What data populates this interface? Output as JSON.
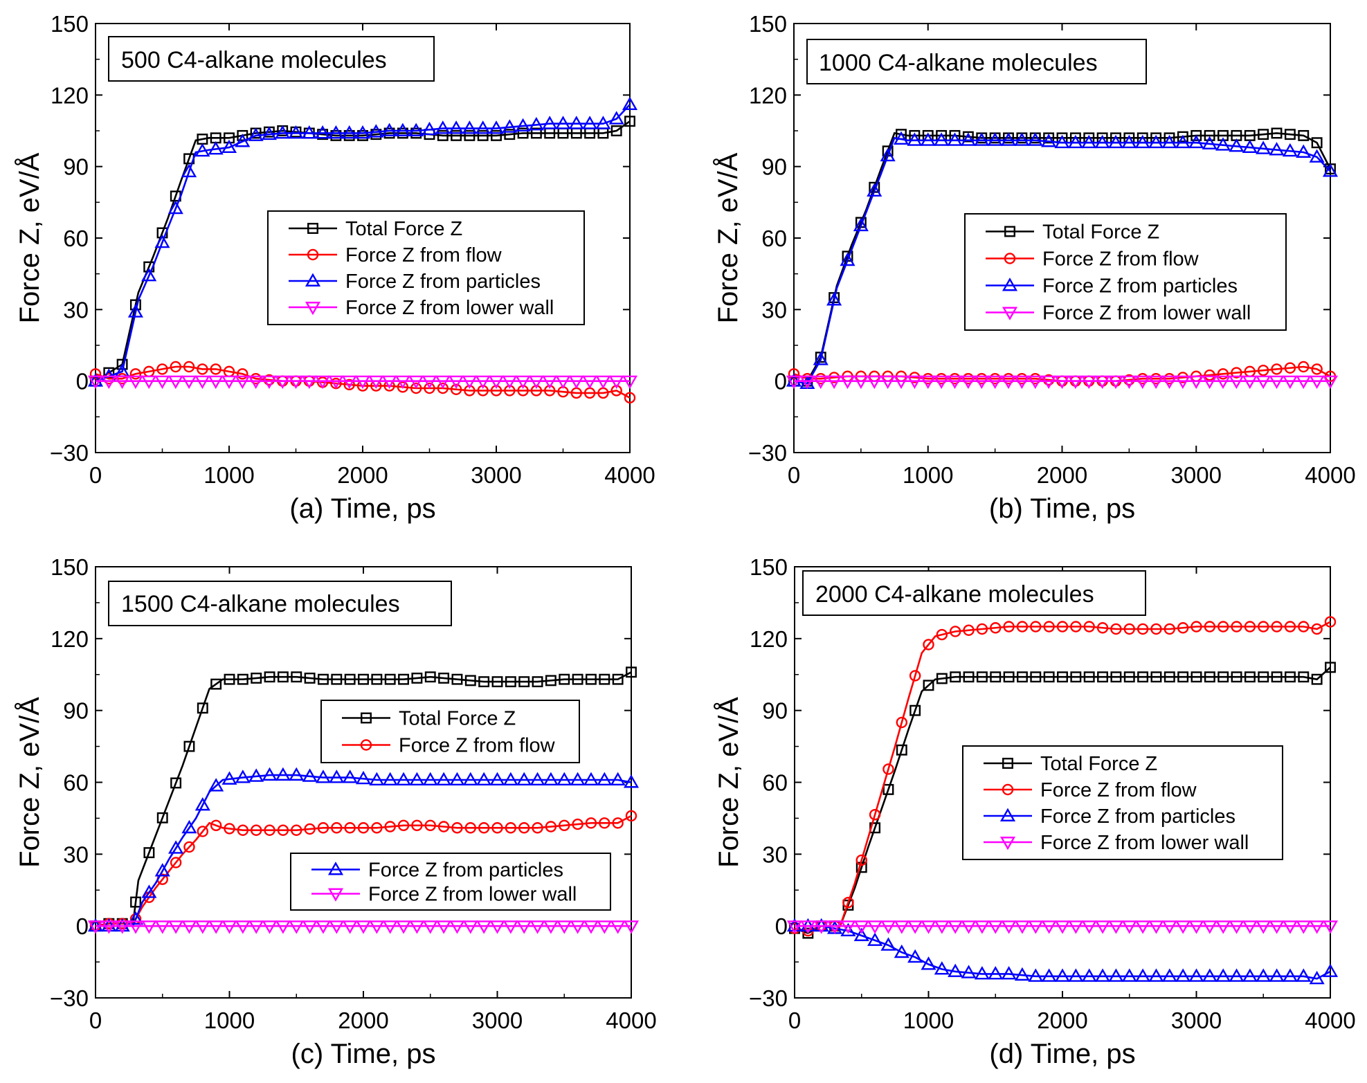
{
  "colors": {
    "total": "#000000",
    "flow": "#ff0000",
    "particles": "#0000ff",
    "lower_wall": "#ff00ff"
  },
  "chart_data": [
    {
      "type": "line",
      "panel_box": "500 C4-alkane molecules",
      "xlabel": "(a) Time, ps",
      "ylabel": "Force Z, eV/Å",
      "xlim": [
        0,
        4000
      ],
      "ylim": [
        -30,
        150
      ],
      "xticks": [
        "0",
        "1000",
        "2000",
        "3000",
        "4000"
      ],
      "yticks": [
        "−30",
        "0",
        "30",
        "60",
        "90",
        "120",
        "150"
      ],
      "legend_groups": [
        [
          "total",
          "flow",
          "particles",
          "lower_wall"
        ]
      ],
      "series": [
        {
          "key": "total",
          "name": "Total Force Z",
          "marker": "square",
          "color": "#000000",
          "x": [
            0,
            200,
            320,
            430,
            540,
            640,
            750,
            850,
            1000,
            1200,
            1400,
            1600,
            1800,
            2000,
            2200,
            2400,
            2600,
            2800,
            3000,
            3200,
            3400,
            3600,
            3800,
            3900,
            4000
          ],
          "y": [
            0,
            7,
            37,
            52,
            68,
            84,
            101,
            102,
            102,
            104,
            105,
            104,
            103,
            103,
            104,
            104,
            103,
            103,
            103,
            104,
            104,
            104,
            104,
            105,
            109
          ]
        },
        {
          "key": "flow",
          "name": "Force Z from flow",
          "marker": "circle",
          "color": "#ff0000",
          "x": [
            0,
            100,
            200,
            300,
            400,
            500,
            600,
            700,
            800,
            900,
            1000,
            1100,
            1200,
            1400,
            1600,
            1800,
            2000,
            2200,
            2400,
            2600,
            2800,
            3000,
            3200,
            3400,
            3600,
            3800,
            3900,
            4000
          ],
          "y": [
            3,
            1,
            1,
            3,
            4,
            5,
            6,
            6,
            5,
            5,
            4,
            3,
            1,
            0,
            0,
            -1,
            -2,
            -2,
            -3,
            -3,
            -4,
            -4,
            -4,
            -4,
            -5,
            -5,
            -4,
            -7
          ]
        },
        {
          "key": "particles",
          "name": "Force Z from particles",
          "marker": "triangle-up",
          "color": "#0000ff",
          "x": [
            0,
            200,
            320,
            430,
            540,
            640,
            750,
            850,
            1000,
            1200,
            1400,
            1600,
            1800,
            2000,
            2200,
            2400,
            2600,
            2800,
            3000,
            3200,
            3400,
            3600,
            3800,
            3900,
            4000
          ],
          "y": [
            0,
            4,
            34,
            48,
            64,
            78,
            96,
            97,
            98,
            103,
            104,
            104,
            104,
            104,
            105,
            105,
            106,
            106,
            106,
            107,
            108,
            108,
            108,
            110,
            116
          ]
        },
        {
          "key": "lower_wall",
          "name": "Force Z from lower wall",
          "marker": "triangle-down",
          "color": "#ff00ff",
          "x": [
            0,
            500,
            1000,
            1500,
            2000,
            2500,
            3000,
            3500,
            4000
          ],
          "y": [
            0,
            0,
            0,
            0,
            0,
            0,
            0,
            0,
            0
          ]
        }
      ]
    },
    {
      "type": "line",
      "panel_box": "1000 C4-alkane molecules",
      "xlabel": "(b) Time, ps",
      "ylabel": "Force Z, eV/Å",
      "xlim": [
        0,
        4000
      ],
      "ylim": [
        -30,
        150
      ],
      "xticks": [
        "0",
        "1000",
        "2000",
        "3000",
        "4000"
      ],
      "yticks": [
        "−30",
        "0",
        "30",
        "60",
        "90",
        "120",
        "150"
      ],
      "legend_groups": [
        [
          "total",
          "flow",
          "particles",
          "lower_wall"
        ]
      ],
      "series": [
        {
          "key": "total",
          "name": "Total Force Z",
          "marker": "square",
          "color": "#000000",
          "x": [
            0,
            100,
            200,
            320,
            430,
            540,
            650,
            750,
            850,
            1000,
            1200,
            1400,
            1600,
            1800,
            2000,
            2200,
            2400,
            2600,
            2800,
            3000,
            3200,
            3400,
            3600,
            3800,
            3900,
            4000
          ],
          "y": [
            0,
            0,
            10,
            40,
            57,
            72,
            89,
            104,
            103,
            103,
            103,
            102,
            102,
            102,
            102,
            102,
            102,
            102,
            102,
            103,
            103,
            103,
            104,
            103,
            100,
            89
          ]
        },
        {
          "key": "flow",
          "name": "Force Z from flow",
          "marker": "circle",
          "color": "#ff0000",
          "x": [
            0,
            100,
            200,
            400,
            600,
            800,
            1000,
            1200,
            1400,
            1600,
            1800,
            2000,
            2200,
            2400,
            2600,
            2800,
            3000,
            3200,
            3400,
            3600,
            3800,
            3900,
            4000
          ],
          "y": [
            3,
            1,
            1,
            2,
            2,
            2,
            1,
            1,
            1,
            1,
            1,
            0,
            0,
            0,
            1,
            1,
            2,
            3,
            4,
            5,
            6,
            5,
            2
          ]
        },
        {
          "key": "particles",
          "name": "Force Z from particles",
          "marker": "triangle-up",
          "color": "#0000ff",
          "x": [
            0,
            100,
            200,
            320,
            430,
            540,
            650,
            750,
            850,
            1000,
            1200,
            1400,
            1600,
            1800,
            2000,
            2200,
            2400,
            2600,
            2800,
            3000,
            3200,
            3400,
            3600,
            3800,
            3900,
            4000
          ],
          "y": [
            0,
            -1,
            9,
            39,
            55,
            71,
            87,
            102,
            101,
            101,
            101,
            101,
            101,
            101,
            100,
            100,
            100,
            100,
            100,
            100,
            99,
            98,
            97,
            96,
            94,
            88
          ]
        },
        {
          "key": "lower_wall",
          "name": "Force Z from lower wall",
          "marker": "triangle-down",
          "color": "#ff00ff",
          "x": [
            0,
            500,
            1000,
            1500,
            2000,
            2500,
            3000,
            3500,
            4000
          ],
          "y": [
            0,
            0,
            0,
            0,
            0,
            0,
            0,
            0,
            0
          ]
        }
      ]
    },
    {
      "type": "line",
      "panel_box": "1500 C4-alkane molecules",
      "xlabel": "(c) Time, ps",
      "ylabel": "Force Z, eV/Å",
      "xlim": [
        0,
        4000
      ],
      "ylim": [
        -30,
        150
      ],
      "xticks": [
        "0",
        "1000",
        "2000",
        "3000",
        "4000"
      ],
      "yticks": [
        "−30",
        "0",
        "30",
        "60",
        "90",
        "120",
        "150"
      ],
      "legend_groups": [
        [
          "total",
          "flow"
        ],
        [
          "particles",
          "lower_wall"
        ]
      ],
      "series": [
        {
          "key": "total",
          "name": "Total Force Z",
          "marker": "square",
          "color": "#000000",
          "x": [
            0,
            100,
            200,
            280,
            320,
            430,
            540,
            650,
            750,
            850,
            950,
            1100,
            1300,
            1500,
            1700,
            1900,
            2100,
            2300,
            2500,
            2700,
            2900,
            3100,
            3300,
            3500,
            3700,
            3900,
            4000
          ],
          "y": [
            0,
            1,
            1,
            1,
            19,
            35,
            51,
            67,
            83,
            99,
            103,
            103,
            104,
            104,
            103,
            103,
            103,
            103,
            104,
            103,
            102,
            102,
            102,
            103,
            103,
            103,
            106
          ]
        },
        {
          "key": "flow",
          "name": "Force Z from flow",
          "marker": "circle",
          "color": "#ff0000",
          "x": [
            0,
            100,
            200,
            280,
            350,
            450,
            550,
            650,
            750,
            850,
            950,
            1100,
            1300,
            1500,
            1700,
            1900,
            2100,
            2300,
            2500,
            2700,
            2900,
            3100,
            3300,
            3500,
            3700,
            3900,
            4000
          ],
          "y": [
            0,
            1,
            1,
            1,
            8,
            16,
            23,
            30,
            36,
            43,
            41,
            40,
            40,
            40,
            41,
            41,
            41,
            42,
            42,
            41,
            41,
            41,
            41,
            42,
            43,
            43,
            46
          ]
        },
        {
          "key": "particles",
          "name": "Force Z from particles",
          "marker": "triangle-up",
          "color": "#0000ff",
          "x": [
            0,
            100,
            200,
            280,
            350,
            450,
            550,
            650,
            750,
            850,
            950,
            1100,
            1300,
            1500,
            1700,
            1900,
            2100,
            2300,
            2500,
            2700,
            2900,
            3100,
            3300,
            3500,
            3700,
            3900,
            4000
          ],
          "y": [
            0,
            0,
            0,
            0,
            10,
            18,
            28,
            37,
            45,
            56,
            61,
            62,
            63,
            63,
            62,
            62,
            61,
            61,
            61,
            61,
            61,
            61,
            61,
            61,
            61,
            61,
            60
          ]
        },
        {
          "key": "lower_wall",
          "name": "Force Z from lower wall",
          "marker": "triangle-down",
          "color": "#ff00ff",
          "x": [
            0,
            500,
            1000,
            1500,
            2000,
            2500,
            3000,
            3500,
            4000
          ],
          "y": [
            0,
            0,
            0,
            0,
            0,
            0,
            0,
            0,
            0
          ]
        }
      ]
    },
    {
      "type": "line",
      "panel_box": "2000 C4-alkane molecules",
      "xlabel": "(d) Time, ps",
      "ylabel": "Force Z, eV/Å",
      "xlim": [
        0,
        4000
      ],
      "ylim": [
        -30,
        150
      ],
      "xticks": [
        "0",
        "1000",
        "2000",
        "3000",
        "4000"
      ],
      "yticks": [
        "−30",
        "0",
        "30",
        "60",
        "90",
        "120",
        "150"
      ],
      "legend_groups": [
        [
          "total",
          "flow",
          "particles",
          "lower_wall"
        ]
      ],
      "series": [
        {
          "key": "total",
          "name": "Total Force Z",
          "marker": "square",
          "color": "#000000",
          "x": [
            0,
            100,
            200,
            340,
            450,
            550,
            650,
            750,
            850,
            950,
            1050,
            1200,
            1400,
            1600,
            1800,
            2000,
            2200,
            2400,
            2600,
            2800,
            3000,
            3200,
            3400,
            3600,
            3800,
            3900,
            4000
          ],
          "y": [
            -1,
            -3,
            0,
            0,
            16,
            33,
            49,
            65,
            82,
            98,
            103,
            104,
            104,
            104,
            104,
            104,
            104,
            104,
            104,
            104,
            104,
            104,
            104,
            104,
            104,
            103,
            108
          ]
        },
        {
          "key": "flow",
          "name": "Force Z from flow",
          "marker": "circle",
          "color": "#ff0000",
          "x": [
            0,
            100,
            200,
            340,
            450,
            550,
            650,
            750,
            850,
            950,
            1050,
            1200,
            1400,
            1600,
            1800,
            2000,
            2200,
            2400,
            2600,
            2800,
            3000,
            3200,
            3400,
            3600,
            3800,
            3900,
            4000
          ],
          "y": [
            -1,
            -2,
            0,
            0,
            18,
            37,
            56,
            75,
            95,
            114,
            121,
            123,
            124,
            125,
            125,
            125,
            125,
            124,
            124,
            124,
            125,
            125,
            125,
            125,
            125,
            124,
            127
          ]
        },
        {
          "key": "particles",
          "name": "Force Z from particles",
          "marker": "triangle-up",
          "color": "#0000ff",
          "x": [
            0,
            100,
            200,
            300,
            400,
            500,
            600,
            700,
            800,
            900,
            1000,
            1100,
            1200,
            1400,
            1600,
            1800,
            2000,
            2200,
            2400,
            2600,
            2800,
            3000,
            3200,
            3400,
            3600,
            3800,
            3900,
            4000
          ],
          "y": [
            0,
            0,
            0,
            -1,
            -2,
            -4,
            -6,
            -8,
            -11,
            -13,
            -16,
            -18,
            -19,
            -20,
            -20,
            -21,
            -21,
            -21,
            -21,
            -21,
            -21,
            -21,
            -21,
            -21,
            -21,
            -21,
            -22,
            -19
          ]
        },
        {
          "key": "lower_wall",
          "name": "Force Z from lower wall",
          "marker": "triangle-down",
          "color": "#ff00ff",
          "x": [
            0,
            500,
            1000,
            1500,
            2000,
            2500,
            3000,
            3500,
            4000
          ],
          "y": [
            0,
            0,
            0,
            0,
            0,
            0,
            0,
            0,
            0
          ]
        }
      ]
    }
  ]
}
